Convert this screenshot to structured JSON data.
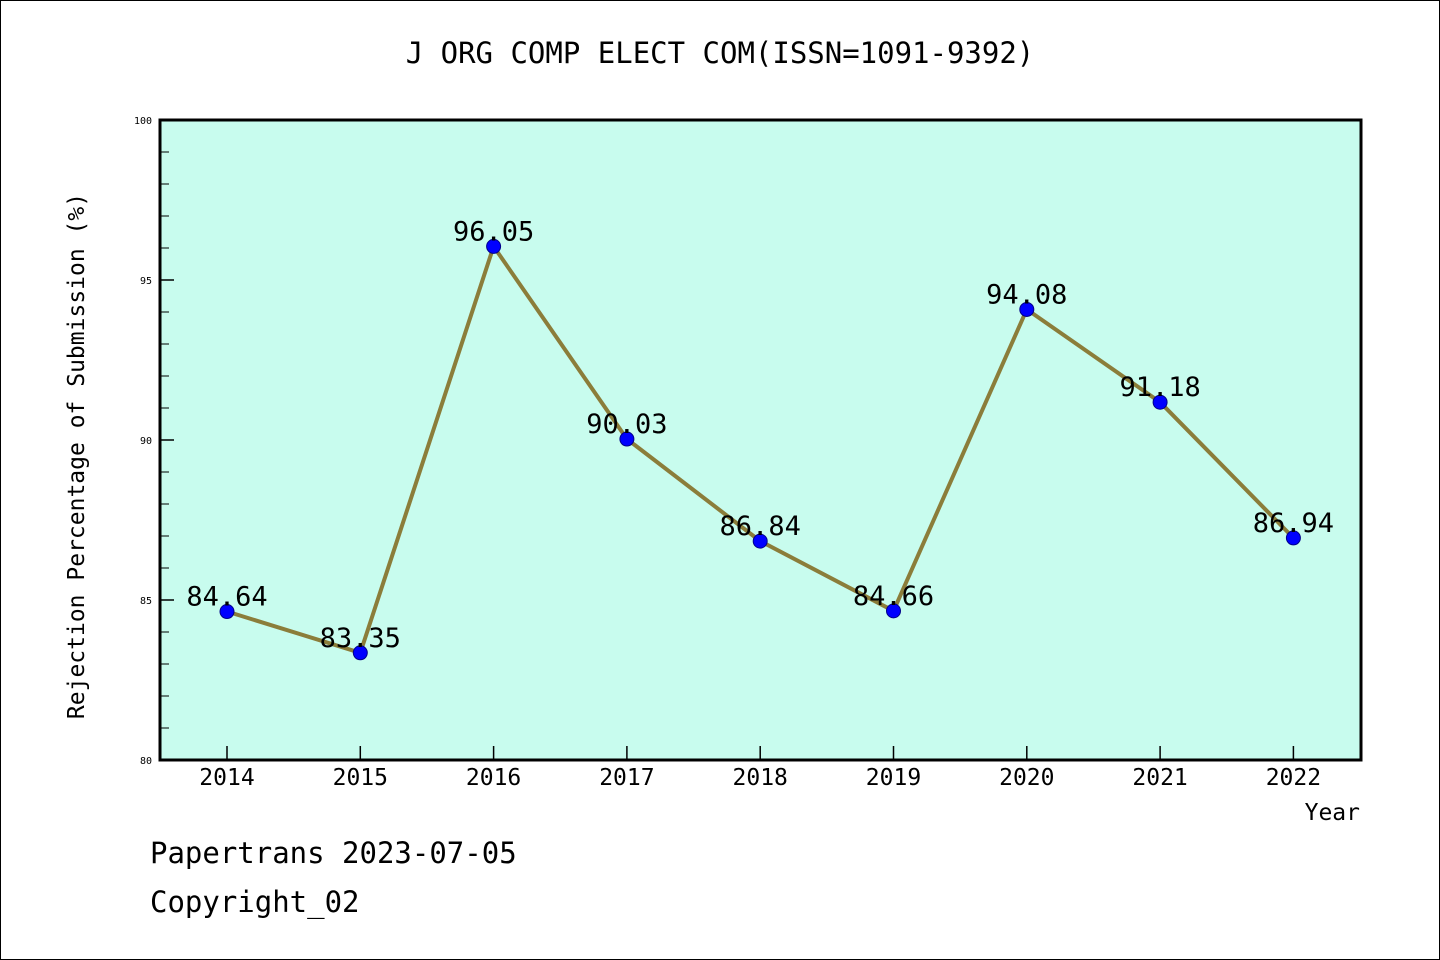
{
  "chart_data": {
    "type": "line",
    "title": "J ORG COMP ELECT COM(ISSN=1091-9392)",
    "xlabel": "Year",
    "ylabel": "Rejection Percentage of Submission (%)",
    "categories": [
      "2014",
      "2015",
      "2016",
      "2017",
      "2018",
      "2019",
      "2020",
      "2021",
      "2022"
    ],
    "values": [
      84.64,
      83.35,
      96.05,
      90.03,
      86.84,
      84.66,
      94.08,
      91.18,
      86.94
    ],
    "value_labels": [
      "84.64",
      "83.35",
      "96.05",
      "90.03",
      "86.84",
      "84.66",
      "94.08",
      "91.18",
      "86.94"
    ],
    "ylim": [
      80,
      100
    ],
    "yticks": [
      80,
      85,
      90,
      95,
      100
    ],
    "ytick_labels": [
      "80",
      "85",
      "90",
      "95",
      "100"
    ],
    "grid": false,
    "colors": {
      "plot_background": "#c8fcee",
      "line": "#8b7d3a",
      "marker": "#0000ff"
    }
  },
  "footer": {
    "date_text": "Papertrans 2023-07-05",
    "copyright_text": "Copyright_02"
  }
}
